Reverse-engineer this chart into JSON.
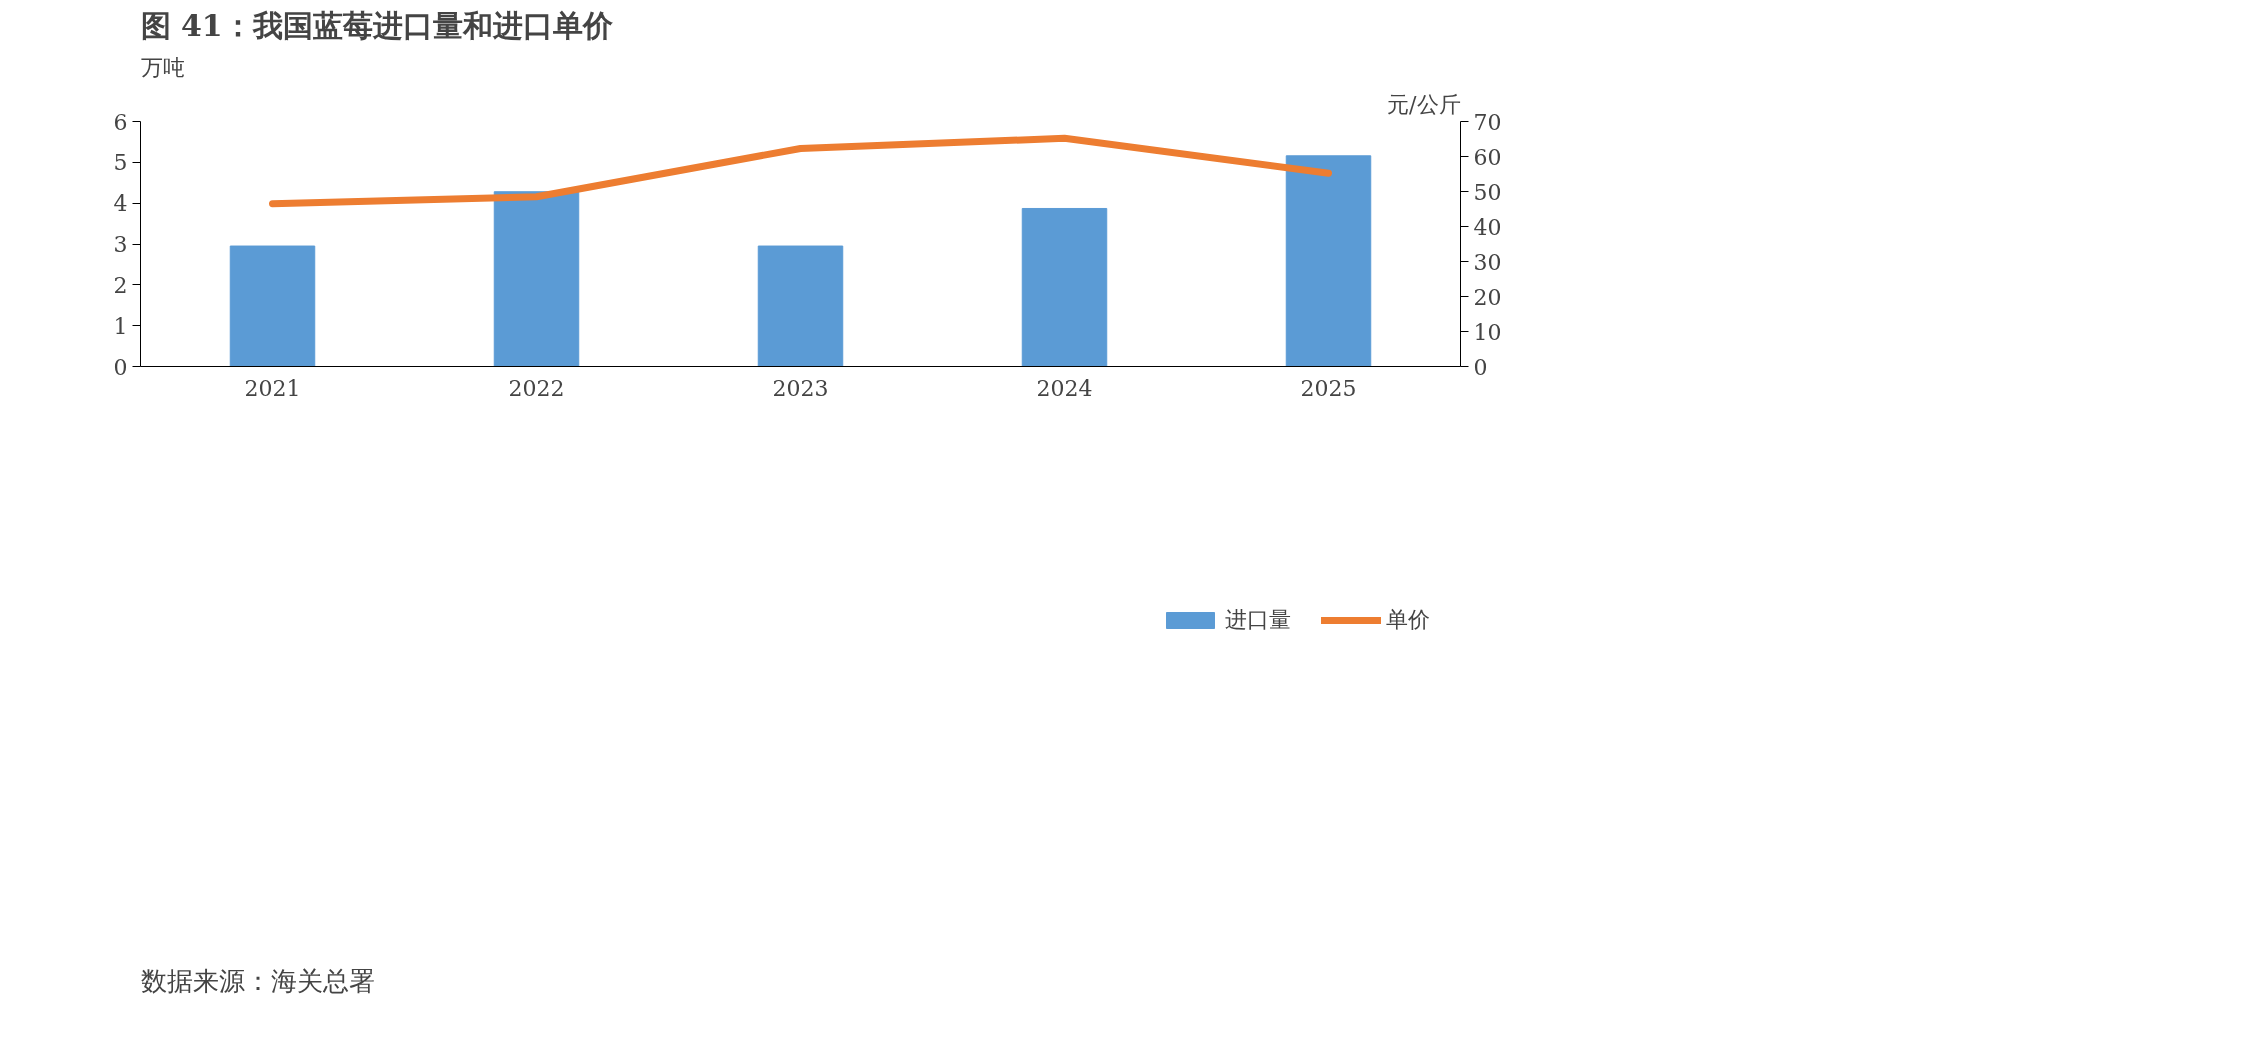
{
  "chart_data": {
    "type": "bar",
    "title": "图 41：我国蓝莓进口量和进口单价",
    "ylabel": "万吨",
    "y2label": "元/公斤",
    "categories": [
      "2021",
      "2022",
      "2023",
      "2024",
      "2025"
    ],
    "series": [
      {
        "name": "进口量",
        "color": "#5b9bd5",
        "values": [
          2.95,
          4.28,
          2.95,
          3.87,
          5.16
        ]
      },
      {
        "name": "单价",
        "type": "line",
        "axis": "y2",
        "color": "#ed7d31",
        "values": [
          46.5,
          48.5,
          62.3,
          65.2,
          55.2
        ]
      }
    ],
    "ylim": [
      0,
      6
    ],
    "yticks": [
      0,
      1,
      2,
      3,
      4,
      5,
      6
    ],
    "y2lim": [
      0,
      70
    ],
    "y2ticks": [
      0,
      10,
      20,
      30,
      40,
      50,
      60,
      70
    ],
    "grid": false,
    "legend": "bottom",
    "marker": "none",
    "line_style": "solid",
    "annotations": [
      "数据来源：海关总署"
    ]
  }
}
